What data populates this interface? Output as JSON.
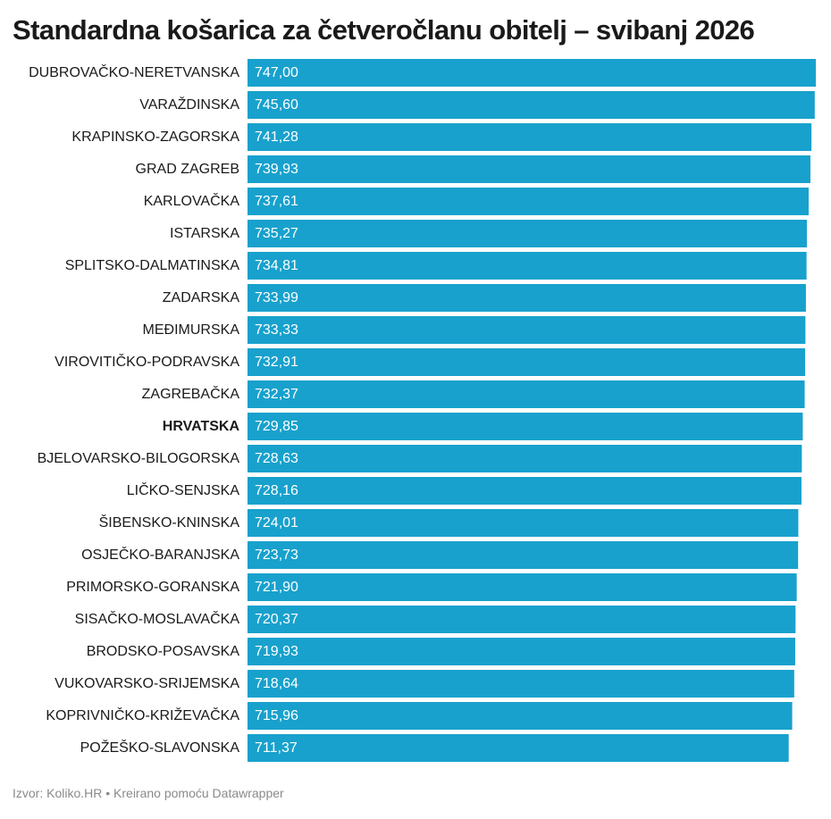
{
  "chart_data": {
    "type": "bar",
    "orientation": "horizontal",
    "title": "Standardna košarica za četveročlanu obitelj – svibanj 2026",
    "categories": [
      "DUBROVAČKO-NERETVANSKA",
      "VARAŽDINSKA",
      "KRAPINSKO-ZAGORSKA",
      "GRAD ZAGREB",
      "KARLOVAČKA",
      "ISTARSKA",
      "SPLITSKO-DALMATINSKA",
      "ZADARSKA",
      "MEĐIMURSKA",
      "VIROVITIČKO-PODRAVSKA",
      "ZAGREBAČKA",
      "HRVATSKA",
      "BJELOVARSKO-BILOGORSKA",
      "LIČKO-SENJSKA",
      "ŠIBENSKO-KNINSKA",
      "OSJEČKO-BARANJSKA",
      "PRIMORSKO-GORANSKA",
      "SISAČKO-MOSLAVAČKA",
      "BRODSKO-POSAVSKA",
      "VUKOVARSKO-SRIJEMSKA",
      "KOPRIVNIČKO-KRIŽEVAČKA",
      "POŽEŠKO-SLAVONSKA"
    ],
    "values": [
      747.0,
      745.6,
      741.28,
      739.93,
      737.61,
      735.27,
      734.81,
      733.99,
      733.33,
      732.91,
      732.37,
      729.85,
      728.63,
      728.16,
      724.01,
      723.73,
      721.9,
      720.37,
      719.93,
      718.64,
      715.96,
      711.37
    ],
    "value_labels": [
      "747,00",
      "745,60",
      "741,28",
      "739,93",
      "737,61",
      "735,27",
      "734,81",
      "733,99",
      "733,33",
      "732,91",
      "732,37",
      "729,85",
      "728,63",
      "728,16",
      "724,01",
      "723,73",
      "721,90",
      "720,37",
      "719,93",
      "718,64",
      "715,96",
      "711,37"
    ],
    "highlight_category": "HRVATSKA",
    "xlim": [
      0,
      747
    ],
    "grid": false,
    "legend": "none",
    "bar_color": "#18a1cd",
    "value_label_color": "#ffffff"
  },
  "footer": {
    "text": "Izvor: Koliko.HR • Kreirano pomoću Datawrapper"
  }
}
